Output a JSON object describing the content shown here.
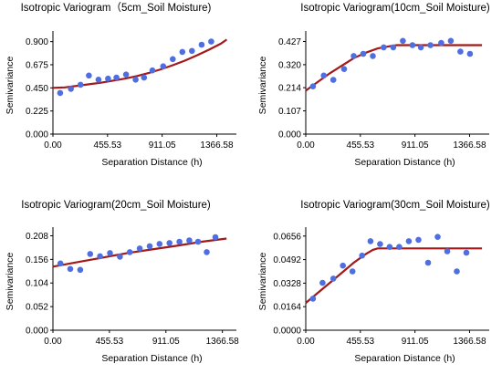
{
  "chart_data": [
    {
      "type": "scatter",
      "title": "Isotropic Variogram（5cm_Soil Moisture)",
      "xlabel": "Separation Distance (h)",
      "ylabel": "Semivariance",
      "xlim": [
        0,
        1500
      ],
      "ylim": [
        0,
        0.95
      ],
      "xticks": [
        "0.00",
        "455.53",
        "911.05",
        "1366.58"
      ],
      "yticks": [
        "0.000",
        "0.225",
        "0.450",
        "0.675",
        "0.900"
      ],
      "points": {
        "x": [
          60,
          150,
          230,
          300,
          380,
          460,
          530,
          610,
          690,
          760,
          830,
          920,
          1000,
          1080,
          1160,
          1240,
          1320
        ],
        "y": [
          0.4,
          0.44,
          0.48,
          0.57,
          0.53,
          0.54,
          0.55,
          0.58,
          0.53,
          0.55,
          0.62,
          0.66,
          0.73,
          0.8,
          0.81,
          0.87,
          0.9
        ]
      },
      "model": {
        "x": [
          0,
          100,
          200,
          300,
          400,
          500,
          600,
          700,
          800,
          900,
          1000,
          1100,
          1200,
          1300,
          1400,
          1450
        ],
        "y": [
          0.45,
          0.455,
          0.47,
          0.485,
          0.5,
          0.52,
          0.54,
          0.565,
          0.595,
          0.63,
          0.67,
          0.715,
          0.765,
          0.82,
          0.88,
          0.92
        ]
      },
      "colors": {
        "points": "#4f6fe0",
        "model": "#a31919"
      }
    },
    {
      "type": "scatter",
      "title": "Isotropic Variogram(10cm_Soil Moisture)",
      "xlabel": "Separation Distance (h)",
      "ylabel": "Semivariance",
      "xlim": [
        0,
        1500
      ],
      "ylim": [
        0,
        0.45
      ],
      "xticks": [
        "0.00",
        "455.53",
        "911.05",
        "1366.58"
      ],
      "yticks": [
        "0.000",
        "0.107",
        "0.214",
        "0.320",
        "0.427"
      ],
      "points": {
        "x": [
          60,
          150,
          230,
          320,
          400,
          480,
          560,
          650,
          730,
          810,
          890,
          960,
          1040,
          1130,
          1210,
          1290,
          1370
        ],
        "y": [
          0.22,
          0.27,
          0.25,
          0.3,
          0.36,
          0.37,
          0.36,
          0.4,
          0.4,
          0.43,
          0.41,
          0.4,
          0.41,
          0.42,
          0.43,
          0.38,
          0.37
        ]
      },
      "model": {
        "x": [
          0,
          100,
          200,
          300,
          400,
          500,
          600,
          700,
          760,
          800,
          900,
          1000,
          1200,
          1400,
          1470
        ],
        "y": [
          0.2,
          0.24,
          0.28,
          0.315,
          0.35,
          0.375,
          0.395,
          0.405,
          0.41,
          0.41,
          0.41,
          0.41,
          0.41,
          0.41,
          0.41
        ]
      },
      "colors": {
        "points": "#4f6fe0",
        "model": "#a31919"
      }
    },
    {
      "type": "scatter",
      "title": "Isotropic Variogram(20cm_Soil Moisture)",
      "xlabel": "Separation Distance (h)",
      "ylabel": "Semivariance",
      "xlim": [
        0,
        1450
      ],
      "ylim": [
        0,
        0.215
      ],
      "xticks": [
        "0.00",
        "455.53",
        "911.05",
        "1366.58"
      ],
      "yticks": [
        "0.000",
        "0.052",
        "0.104",
        "0.156",
        "0.208"
      ],
      "points": {
        "x": [
          60,
          140,
          220,
          300,
          380,
          460,
          540,
          620,
          700,
          780,
          860,
          940,
          1020,
          1100,
          1170,
          1240,
          1310
        ],
        "y": [
          0.147,
          0.135,
          0.133,
          0.168,
          0.163,
          0.17,
          0.162,
          0.172,
          0.18,
          0.185,
          0.19,
          0.192,
          0.195,
          0.198,
          0.195,
          0.172,
          0.205
        ]
      },
      "model": {
        "x": [
          0,
          200,
          400,
          600,
          800,
          1000,
          1200,
          1400
        ],
        "y": [
          0.14,
          0.15,
          0.16,
          0.17,
          0.178,
          0.186,
          0.195,
          0.202
        ]
      },
      "colors": {
        "points": "#4f6fe0",
        "model": "#a31919"
      }
    },
    {
      "type": "scatter",
      "title": "Isotropic Variogram(30cm_Soil Moisture)",
      "xlabel": "Separation Distance (h)",
      "ylabel": "Semivariance",
      "xlim": [
        0,
        1500
      ],
      "ylim": [
        0,
        0.068
      ],
      "xticks": [
        "0.00",
        "455.53",
        "911.05",
        "1366.58"
      ],
      "yticks": [
        "0.0000",
        "0.0164",
        "0.0328",
        "0.0492",
        "0.0656"
      ],
      "points": {
        "x": [
          60,
          140,
          230,
          310,
          390,
          470,
          540,
          620,
          700,
          780,
          860,
          940,
          1020,
          1100,
          1180,
          1260,
          1340
        ],
        "y": [
          0.022,
          0.033,
          0.036,
          0.045,
          0.041,
          0.052,
          0.062,
          0.06,
          0.058,
          0.058,
          0.062,
          0.063,
          0.047,
          0.065,
          0.055,
          0.041,
          0.054
        ]
      },
      "model": {
        "x": [
          0,
          100,
          200,
          300,
          400,
          500,
          560,
          600,
          800,
          1000,
          1200,
          1400,
          1470
        ],
        "y": [
          0.019,
          0.026,
          0.033,
          0.04,
          0.047,
          0.053,
          0.056,
          0.057,
          0.057,
          0.057,
          0.057,
          0.057,
          0.057
        ]
      },
      "colors": {
        "points": "#4f6fe0",
        "model": "#a31919"
      }
    }
  ]
}
